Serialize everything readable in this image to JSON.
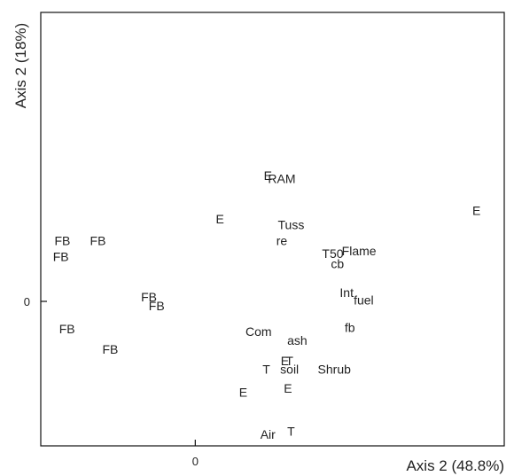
{
  "chart_data": {
    "type": "scatter",
    "title": "",
    "xlabel": "Axis 2 (48.8%)",
    "ylabel": "Axis 2 (18%)",
    "xlim": [
      -1.0,
      2.0
    ],
    "ylim": [
      -1.0,
      2.0
    ],
    "grid": false,
    "legend": "none",
    "x_ticks": [
      {
        "value": 0,
        "label": "0"
      }
    ],
    "y_ticks": [
      {
        "value": 0,
        "label": "0"
      }
    ],
    "points": [
      {
        "label": "FB",
        "x": -0.86,
        "y": 0.42
      },
      {
        "label": "FB",
        "x": -0.63,
        "y": 0.42
      },
      {
        "label": "FB",
        "x": -0.87,
        "y": 0.31
      },
      {
        "label": "FB",
        "x": -0.3,
        "y": 0.03
      },
      {
        "label": "FB",
        "x": -0.25,
        "y": -0.03
      },
      {
        "label": "FB",
        "x": -0.83,
        "y": -0.19
      },
      {
        "label": "FB",
        "x": -0.55,
        "y": -0.33
      },
      {
        "label": "E",
        "x": 0.16,
        "y": 0.57
      },
      {
        "label": "E",
        "x": 0.47,
        "y": 0.87
      },
      {
        "label": "RAM",
        "x": 0.56,
        "y": 0.85
      },
      {
        "label": "Tuss",
        "x": 0.62,
        "y": 0.53
      },
      {
        "label": "re",
        "x": 0.56,
        "y": 0.42
      },
      {
        "label": "E",
        "x": 1.82,
        "y": 0.63
      },
      {
        "label": "Flame",
        "x": 1.06,
        "y": 0.35
      },
      {
        "label": "T50",
        "x": 0.89,
        "y": 0.33
      },
      {
        "label": "cb",
        "x": 0.92,
        "y": 0.26
      },
      {
        "label": "Int",
        "x": 0.98,
        "y": 0.06
      },
      {
        "label": "fuel",
        "x": 1.09,
        "y": 0.01
      },
      {
        "label": "fb",
        "x": 1.0,
        "y": -0.18
      },
      {
        "label": "Com",
        "x": 0.41,
        "y": -0.21
      },
      {
        "label": "ash",
        "x": 0.66,
        "y": -0.27
      },
      {
        "label": "E",
        "x": 0.58,
        "y": -0.41
      },
      {
        "label": "T",
        "x": 0.61,
        "y": -0.41
      },
      {
        "label": "T",
        "x": 0.46,
        "y": -0.47
      },
      {
        "label": "soil",
        "x": 0.61,
        "y": -0.47
      },
      {
        "label": "Shrub",
        "x": 0.9,
        "y": -0.47
      },
      {
        "label": "E",
        "x": 0.6,
        "y": -0.6
      },
      {
        "label": "E",
        "x": 0.31,
        "y": -0.63
      },
      {
        "label": "Air",
        "x": 0.47,
        "y": -0.92
      },
      {
        "label": "T",
        "x": 0.62,
        "y": -0.9
      }
    ]
  }
}
